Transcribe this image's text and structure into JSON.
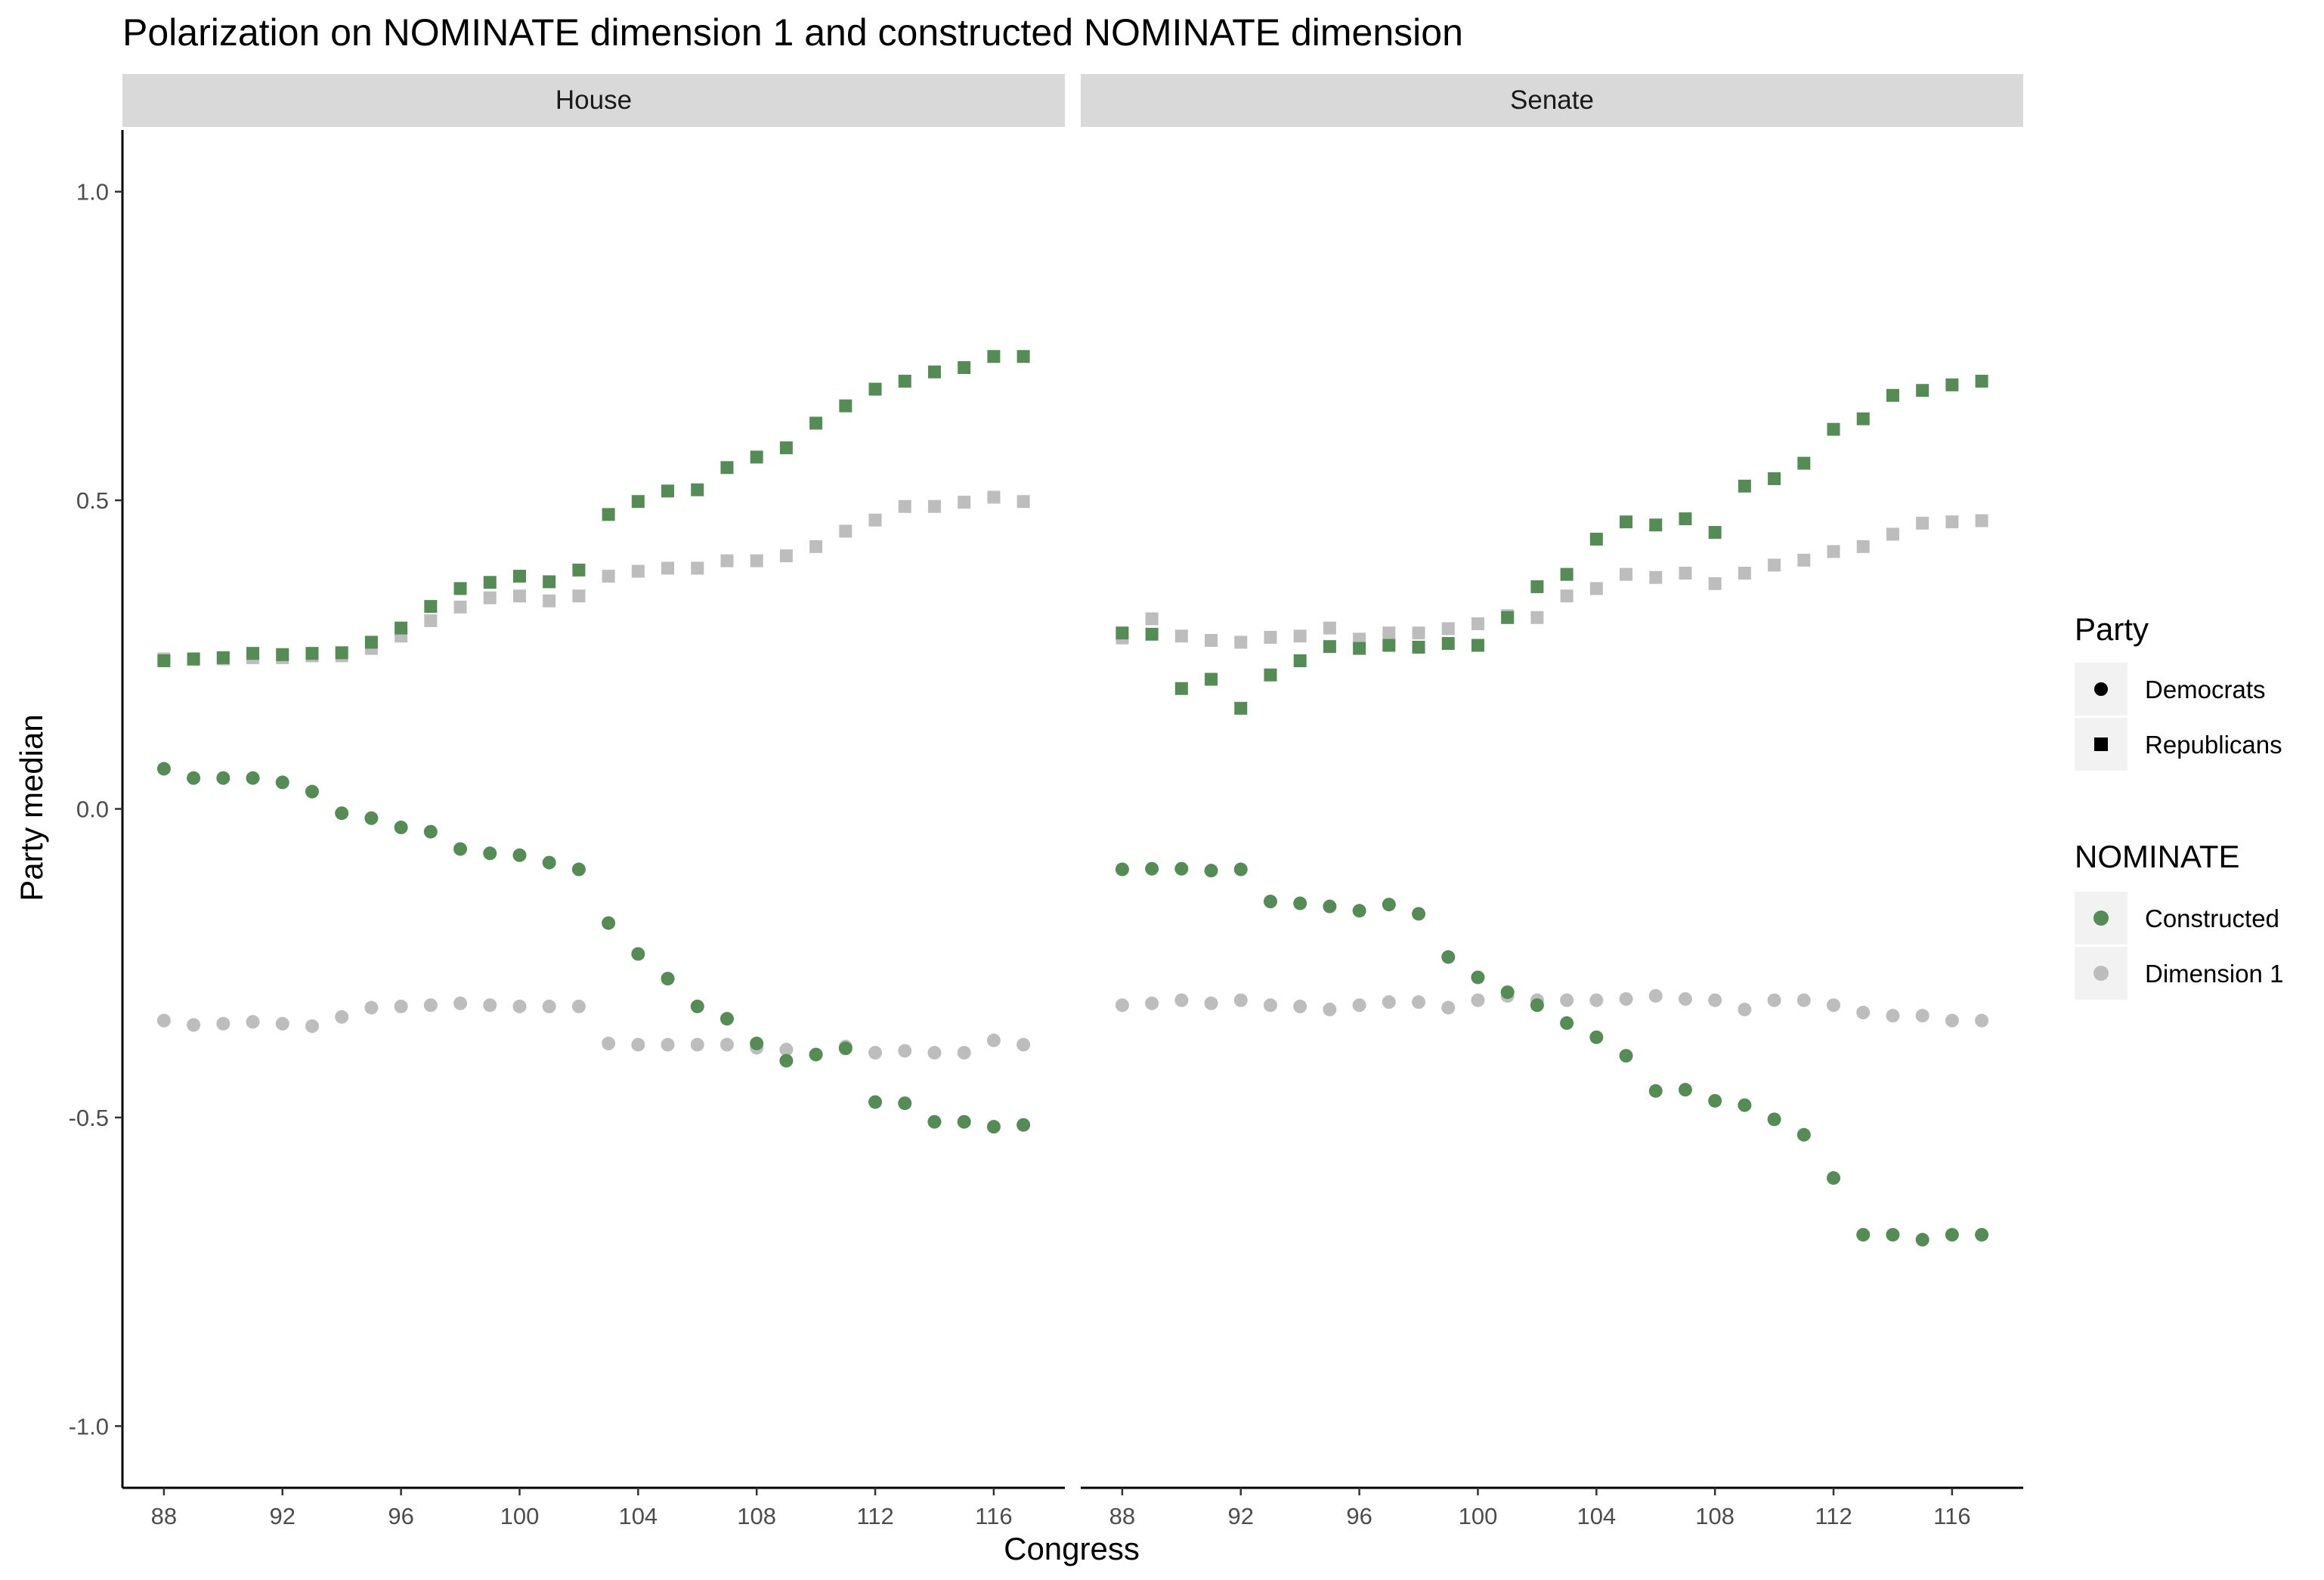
{
  "chart_data": {
    "type": "scatter",
    "title": "Polarization on NOMINATE dimension 1 and constructed NOMINATE dimension",
    "xlabel": "Congress",
    "ylabel": "Party median",
    "ylim": [
      -1.1,
      1.1
    ],
    "xlim": [
      86.6,
      118.4
    ],
    "x_ticks": [
      88,
      92,
      96,
      100,
      104,
      108,
      112,
      116
    ],
    "y_ticks": [
      -1.0,
      -0.5,
      0.0,
      0.5,
      1.0
    ],
    "y_tick_labels": [
      "-1.0",
      "-0.5",
      "0.0",
      "0.5",
      "1.0"
    ],
    "grid": false,
    "legend_position": "right",
    "colors": {
      "Constructed": "#558b55",
      "Dimension 1": "#bdbdbd"
    },
    "x": [
      88,
      89,
      90,
      91,
      92,
      93,
      94,
      95,
      96,
      97,
      98,
      99,
      100,
      101,
      102,
      103,
      104,
      105,
      106,
      107,
      108,
      109,
      110,
      111,
      112,
      113,
      114,
      115,
      116,
      117
    ],
    "panels": [
      {
        "label": "House",
        "series": [
          {
            "party": "Democrats",
            "nominate": "Constructed",
            "values": [
              0.065,
              0.05,
              0.05,
              0.05,
              0.043,
              0.028,
              -0.007,
              -0.015,
              -0.03,
              -0.037,
              -0.065,
              -0.072,
              -0.075,
              -0.087,
              -0.098,
              -0.185,
              -0.235,
              -0.275,
              -0.32,
              -0.34,
              -0.38,
              -0.408,
              -0.398,
              -0.388,
              -0.475,
              -0.477,
              -0.507,
              -0.507,
              -0.515,
              -0.512
            ]
          },
          {
            "party": "Democrats",
            "nominate": "Dimension 1",
            "values": [
              -0.343,
              -0.35,
              -0.348,
              -0.345,
              -0.348,
              -0.352,
              -0.337,
              -0.322,
              -0.32,
              -0.318,
              -0.315,
              -0.318,
              -0.32,
              -0.32,
              -0.32,
              -0.38,
              -0.382,
              -0.382,
              -0.382,
              -0.382,
              -0.387,
              -0.39,
              -0.398,
              -0.385,
              -0.395,
              -0.392,
              -0.395,
              -0.395,
              -0.375,
              -0.382
            ]
          },
          {
            "party": "Republicans",
            "nominate": "Constructed",
            "values": [
              0.24,
              0.243,
              0.245,
              0.252,
              0.25,
              0.252,
              0.253,
              0.27,
              0.293,
              0.328,
              0.357,
              0.367,
              0.377,
              0.368,
              0.387,
              0.477,
              0.498,
              0.515,
              0.517,
              0.553,
              0.57,
              0.585,
              0.625,
              0.653,
              0.68,
              0.693,
              0.708,
              0.715,
              0.733,
              0.733
            ]
          },
          {
            "party": "Republicans",
            "nominate": "Dimension 1",
            "values": [
              0.243,
              0.242,
              0.243,
              0.245,
              0.245,
              0.248,
              0.248,
              0.26,
              0.28,
              0.305,
              0.327,
              0.342,
              0.345,
              0.337,
              0.345,
              0.377,
              0.385,
              0.39,
              0.39,
              0.402,
              0.402,
              0.41,
              0.425,
              0.45,
              0.468,
              0.49,
              0.49,
              0.497,
              0.505,
              0.498
            ]
          }
        ]
      },
      {
        "label": "Senate",
        "series": [
          {
            "party": "Democrats",
            "nominate": "Constructed",
            "values": [
              -0.098,
              -0.097,
              -0.097,
              -0.1,
              -0.098,
              -0.15,
              -0.153,
              -0.158,
              -0.165,
              -0.155,
              -0.17,
              -0.24,
              -0.273,
              -0.297,
              -0.318,
              -0.347,
              -0.37,
              -0.4,
              -0.457,
              -0.455,
              -0.473,
              -0.48,
              -0.503,
              -0.528,
              -0.598,
              -0.69,
              -0.69,
              -0.698,
              -0.69,
              -0.69
            ]
          },
          {
            "party": "Democrats",
            "nominate": "Dimension 1",
            "values": [
              -0.318,
              -0.315,
              -0.31,
              -0.315,
              -0.31,
              -0.318,
              -0.32,
              -0.325,
              -0.318,
              -0.313,
              -0.313,
              -0.322,
              -0.31,
              -0.303,
              -0.31,
              -0.31,
              -0.31,
              -0.308,
              -0.303,
              -0.308,
              -0.31,
              -0.325,
              -0.31,
              -0.31,
              -0.318,
              -0.33,
              -0.335,
              -0.335,
              -0.343,
              -0.343
            ]
          },
          {
            "party": "Republicans",
            "nominate": "Constructed",
            "values": [
              0.285,
              0.283,
              0.195,
              0.21,
              0.163,
              0.217,
              0.24,
              0.263,
              0.26,
              0.265,
              0.262,
              0.268,
              0.265,
              0.31,
              0.36,
              0.38,
              0.437,
              0.465,
              0.46,
              0.47,
              0.448,
              0.523,
              0.535,
              0.56,
              0.615,
              0.632,
              0.67,
              0.678,
              0.687,
              0.693
            ]
          },
          {
            "party": "Republicans",
            "nominate": "Dimension 1",
            "values": [
              0.277,
              0.308,
              0.28,
              0.273,
              0.27,
              0.278,
              0.28,
              0.293,
              0.275,
              0.285,
              0.285,
              0.292,
              0.3,
              0.313,
              0.31,
              0.345,
              0.357,
              0.38,
              0.375,
              0.382,
              0.365,
              0.382,
              0.395,
              0.403,
              0.417,
              0.425,
              0.445,
              0.463,
              0.465,
              0.467
            ]
          }
        ]
      }
    ]
  },
  "legend": {
    "party": {
      "title": "Party",
      "items": [
        {
          "label": "Democrats",
          "shape": "circle"
        },
        {
          "label": "Republicans",
          "shape": "square"
        }
      ]
    },
    "nominate": {
      "title": "NOMINATE",
      "items": [
        {
          "label": "Constructed",
          "color": "#558b55"
        },
        {
          "label": "Dimension 1",
          "color": "#bdbdbd"
        }
      ]
    }
  }
}
